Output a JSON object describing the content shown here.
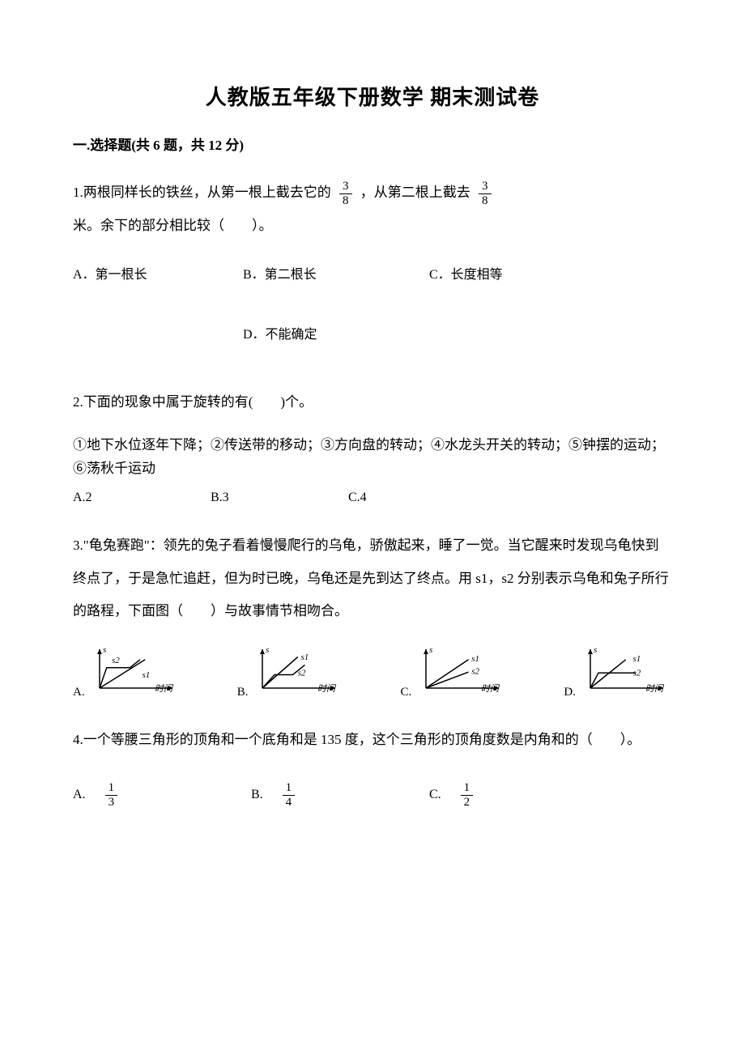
{
  "title": "人教版五年级下册数学 期末测试卷",
  "section1": {
    "header": "一.选择题(共 6 题，共 12 分)"
  },
  "q1": {
    "text_part1": "1.两根同样长的铁丝，从第一根上截去它的",
    "frac1_num": "3",
    "frac1_den": "8",
    "text_part2": "，从第二根上截去",
    "frac2_num": "3",
    "frac2_den": "8",
    "text_part3": "米。余下的部分相比较（　　）。",
    "optA": "A．第一根长",
    "optB": "B．第二根长",
    "optC": "C．长度相等",
    "optD": "D．不能确定"
  },
  "q2": {
    "text": "2.下面的现象中属于旋转的有(　　)个。",
    "items": "①地下水位逐年下降；②传送带的移动；③方向盘的转动；④水龙头开关的转动；⑤钟摆的运动；⑥荡秋千运动",
    "optA": "A.2",
    "optB": "B.3",
    "optC": "C.4"
  },
  "q3": {
    "text": "3.\"龟兔赛跑\"：领先的兔子看着慢慢爬行的乌龟，骄傲起来，睡了一觉。当它醒来时发现乌龟快到终点了，于是急忙追赶，但为时已晚，乌龟还是先到达了终点。用 s1，s2 分别表示乌龟和兔子所行的路程，下面图（　　）与故事情节相吻合。",
    "labelA": "A.",
    "labelB": "B.",
    "labelC": "C.",
    "labelD": "D.",
    "charts": {
      "A": {
        "type": "line",
        "axis_y_label": "s",
        "axis_x_label": "时间",
        "series": [
          {
            "name": "s1",
            "points": [
              [
                0,
                0
              ],
              [
                45,
                32
              ]
            ],
            "label_pos": [
              42,
              12
            ]
          },
          {
            "name": "s2",
            "points": [
              [
                0,
                0
              ],
              [
                7,
                23
              ],
              [
                30,
                23
              ],
              [
                40,
                32
              ]
            ],
            "label_pos": [
              12,
              28
            ]
          }
        ],
        "axis_color": "#000000",
        "line_color": "#000000",
        "line_width": 1.5
      },
      "B": {
        "type": "line",
        "axis_y_label": "s",
        "axis_x_label": "时间",
        "series": [
          {
            "name": "s1",
            "points": [
              [
                0,
                0
              ],
              [
                35,
                35
              ]
            ],
            "label_pos": [
              38,
              32
            ]
          },
          {
            "name": "s2",
            "points": [
              [
                0,
                0
              ],
              [
                12,
                15
              ],
              [
                30,
                15
              ],
              [
                42,
                26
              ]
            ],
            "label_pos": [
              35,
              14
            ]
          }
        ],
        "axis_color": "#000000",
        "line_color": "#000000",
        "line_width": 1.5
      },
      "C": {
        "type": "line",
        "axis_y_label": "s",
        "axis_x_label": "时间",
        "series": [
          {
            "name": "s1",
            "points": [
              [
                0,
                0
              ],
              [
                42,
                32
              ]
            ],
            "label_pos": [
              45,
              30
            ]
          },
          {
            "name": "s2",
            "points": [
              [
                0,
                0
              ],
              [
                42,
                18
              ]
            ],
            "label_pos": [
              45,
              16
            ]
          }
        ],
        "axis_color": "#000000",
        "line_color": "#000000",
        "line_width": 1.5
      },
      "D": {
        "type": "line",
        "axis_y_label": "s",
        "axis_x_label": "时间",
        "series": [
          {
            "name": "s1",
            "points": [
              [
                0,
                0
              ],
              [
                35,
                32
              ]
            ],
            "label_pos": [
              42,
              30
            ]
          },
          {
            "name": "s2",
            "points": [
              [
                0,
                0
              ],
              [
                8,
                17
              ],
              [
                28,
                17
              ],
              [
                45,
                17
              ]
            ],
            "label_pos": [
              42,
              14
            ]
          }
        ],
        "axis_color": "#000000",
        "line_color": "#000000",
        "line_width": 1.5
      }
    }
  },
  "q4": {
    "text": "4.一个等腰三角形的顶角和一个底角和是 135 度，这个三角形的顶角度数是内角和的（　　）。",
    "optA_letter": "A.",
    "optA_num": "1",
    "optA_den": "3",
    "optB_letter": "B.",
    "optB_num": "1",
    "optB_den": "4",
    "optC_letter": "C.",
    "optC_num": "1",
    "optC_den": "2"
  }
}
